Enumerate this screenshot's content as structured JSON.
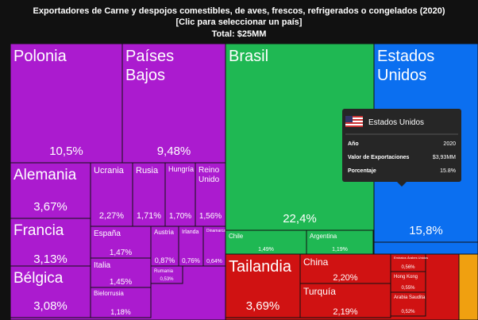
{
  "chart_data": {
    "type": "treemap",
    "title": "Exportadores de Carne y despojos comestibles, de aves, frescos, refrigerados o congelados (2020)",
    "subtitle": "[Clic para seleccionar un país]",
    "total": "Total: $25MM",
    "categories": [
      "Polonia",
      "Países Bajos",
      "Brasil",
      "Estados Unidos",
      "Alemania",
      "Ucrania",
      "Rusia",
      "Hungría",
      "Reino Unido",
      "Francia",
      "España",
      "Austria",
      "Irlanda",
      "Dinamarca",
      "Bélgica",
      "Italia",
      "Rumania",
      "Bielorrusia",
      "Chile",
      "Argentina",
      "Tailandia",
      "China",
      "Turquía",
      "Emiratos Árabes Unidos",
      "Hong Kong",
      "Arabia Saudita"
    ],
    "values": [
      10.5,
      9.48,
      22.4,
      15.8,
      3.67,
      2.27,
      1.71,
      1.7,
      1.56,
      3.13,
      1.47,
      0.87,
      0.76,
      0.64,
      3.08,
      1.45,
      0.53,
      1.18,
      1.49,
      1.19,
      3.69,
      2.2,
      2.19,
      0.56,
      0.55,
      0.52
    ],
    "value_labels": [
      "10,5%",
      "9,48%",
      "22,4%",
      "15,8%",
      "3,67%",
      "2,27%",
      "1,71%",
      "1,70%",
      "1,56%",
      "3,13%",
      "1,47%",
      "0,87%",
      "0,76%",
      "0,64%",
      "3,08%",
      "1,45%",
      "0,53%",
      "1,18%",
      "1,49%",
      "1,19%",
      "3,69%",
      "2,20%",
      "2,19%",
      "0,56%",
      "0,55%",
      "0,52%"
    ],
    "colors": [
      "#ab1bcf",
      "#ab1bcf",
      "#1fb853",
      "#0b6ff0",
      "#ab1bcf",
      "#ab1bcf",
      "#ab1bcf",
      "#ab1bcf",
      "#ab1bcf",
      "#ab1bcf",
      "#ab1bcf",
      "#ab1bcf",
      "#ab1bcf",
      "#ab1bcf",
      "#ab1bcf",
      "#ab1bcf",
      "#ab1bcf",
      "#ab1bcf",
      "#1fb853",
      "#1fb853",
      "#d01212",
      "#d01212",
      "#d01212",
      "#d01212",
      "#d01212",
      "#d01212"
    ],
    "tooltip": {
      "title": "Estados Unidos",
      "rows": [
        [
          "Año",
          "2020"
        ],
        [
          "Valor de Exportaciones",
          "$3,93MM"
        ],
        [
          "Porcentaje",
          "15.8%"
        ]
      ]
    }
  }
}
